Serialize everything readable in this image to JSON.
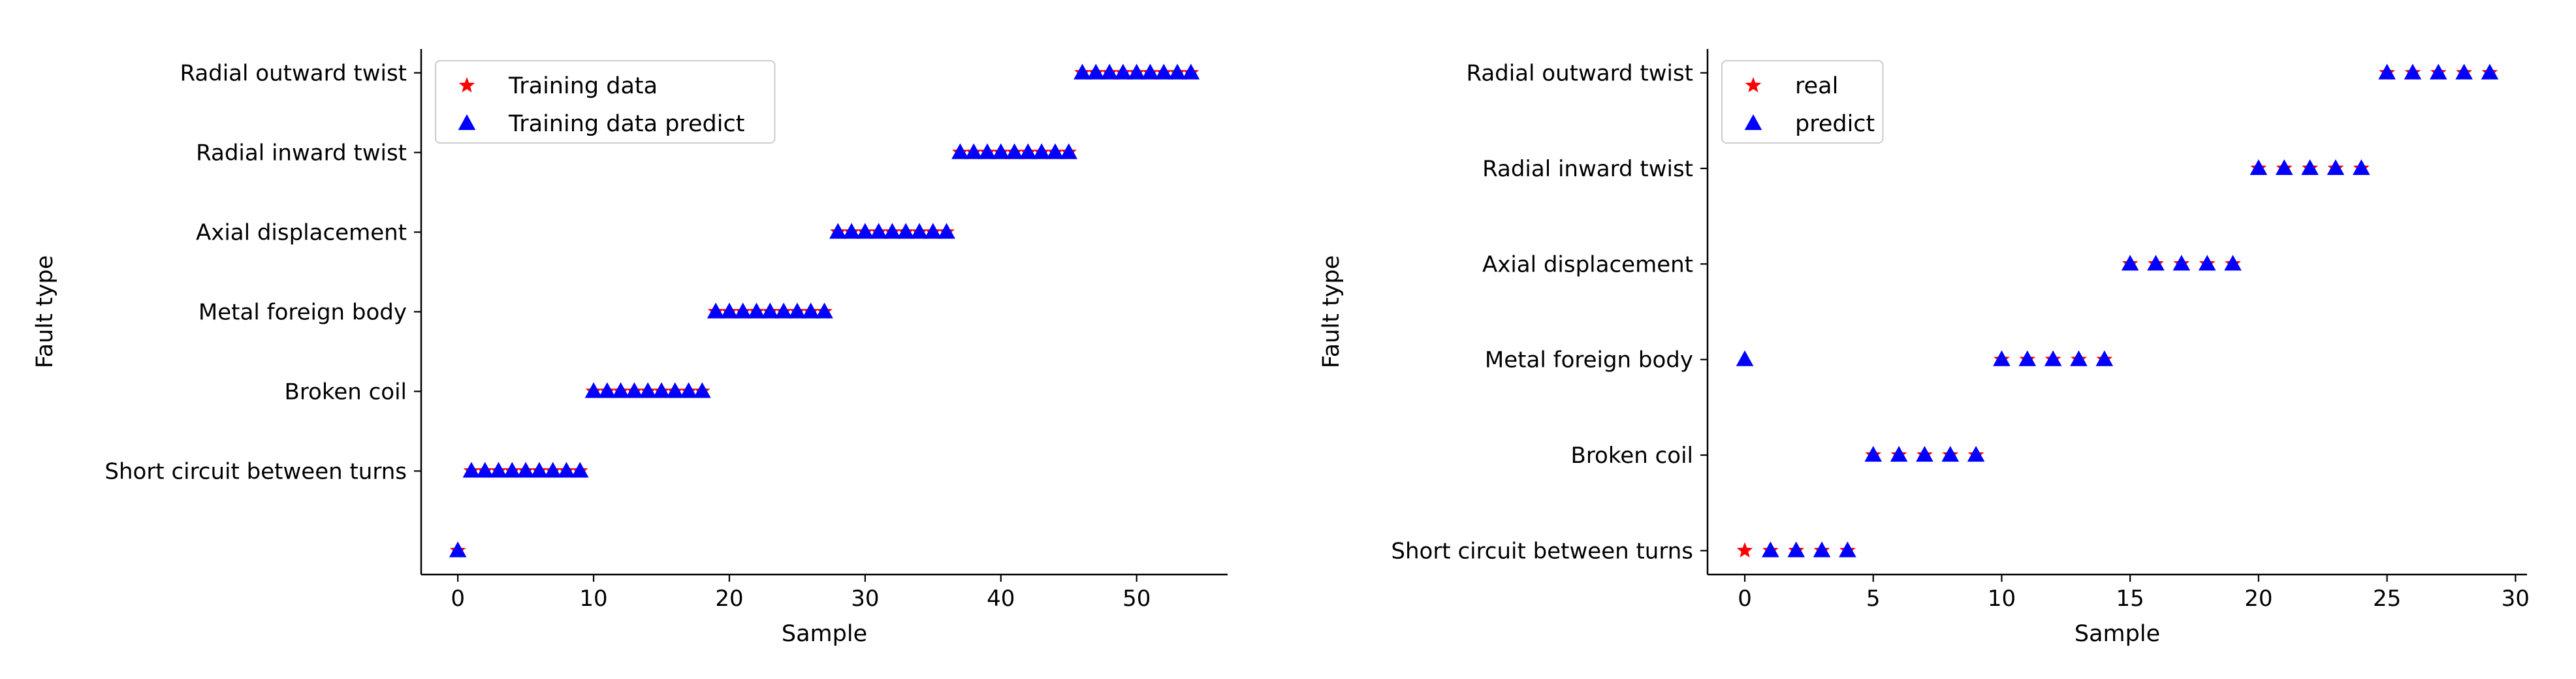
{
  "chart_data": [
    {
      "type": "scatter",
      "xlabel": "Sample",
      "ylabel": "Fault type",
      "xlim": [
        -2.7,
        56.7
      ],
      "ylim": [
        -0.3,
        6.3
      ],
      "xticks": [
        0,
        10,
        20,
        30,
        40,
        50
      ],
      "yticks": [
        1,
        2,
        3,
        4,
        5,
        6
      ],
      "ytick_labels": [
        "Short circuit between turns",
        "Broken coil",
        "Metal foreign body",
        "Axial displacement",
        "Radial inward twist",
        "Radial outward twist"
      ],
      "legend_position": "top-left",
      "series": [
        {
          "name": "Training data",
          "marker": "star",
          "color": "#ff0000",
          "x": [
            0,
            1,
            2,
            3,
            4,
            5,
            6,
            7,
            8,
            9,
            10,
            11,
            12,
            13,
            14,
            15,
            16,
            17,
            18,
            19,
            20,
            21,
            22,
            23,
            24,
            25,
            26,
            27,
            28,
            29,
            30,
            31,
            32,
            33,
            34,
            35,
            36,
            37,
            38,
            39,
            40,
            41,
            42,
            43,
            44,
            45,
            46,
            47,
            48,
            49,
            50,
            51,
            52,
            53,
            54
          ],
          "y": [
            0,
            1,
            1,
            1,
            1,
            1,
            1,
            1,
            1,
            1,
            2,
            2,
            2,
            2,
            2,
            2,
            2,
            2,
            2,
            3,
            3,
            3,
            3,
            3,
            3,
            3,
            3,
            3,
            4,
            4,
            4,
            4,
            4,
            4,
            4,
            4,
            4,
            5,
            5,
            5,
            5,
            5,
            5,
            5,
            5,
            5,
            6,
            6,
            6,
            6,
            6,
            6,
            6,
            6,
            6
          ]
        },
        {
          "name": "Training data predict",
          "marker": "triangle",
          "color": "#0000ff",
          "x": [
            0,
            1,
            2,
            3,
            4,
            5,
            6,
            7,
            8,
            9,
            10,
            11,
            12,
            13,
            14,
            15,
            16,
            17,
            18,
            19,
            20,
            21,
            22,
            23,
            24,
            25,
            26,
            27,
            28,
            29,
            30,
            31,
            32,
            33,
            34,
            35,
            36,
            37,
            38,
            39,
            40,
            41,
            42,
            43,
            44,
            45,
            46,
            47,
            48,
            49,
            50,
            51,
            52,
            53,
            54
          ],
          "y": [
            0,
            1,
            1,
            1,
            1,
            1,
            1,
            1,
            1,
            1,
            2,
            2,
            2,
            2,
            2,
            2,
            2,
            2,
            2,
            3,
            3,
            3,
            3,
            3,
            3,
            3,
            3,
            3,
            4,
            4,
            4,
            4,
            4,
            4,
            4,
            4,
            4,
            5,
            5,
            5,
            5,
            5,
            5,
            5,
            5,
            5,
            6,
            6,
            6,
            6,
            6,
            6,
            6,
            6,
            6
          ]
        }
      ]
    },
    {
      "type": "scatter",
      "xlabel": "Sample",
      "ylabel": "Fault type",
      "xlim": [
        -1.45,
        30.45
      ],
      "ylim": [
        0.75,
        6.25
      ],
      "xticks": [
        0,
        5,
        10,
        15,
        20,
        25,
        30
      ],
      "yticks": [
        1,
        2,
        3,
        4,
        5,
        6
      ],
      "ytick_labels": [
        "Short circuit between turns",
        "Broken coil",
        "Metal foreign body",
        "Axial displacement",
        "Radial inward twist",
        "Radial outward twist"
      ],
      "legend_position": "top-left",
      "series": [
        {
          "name": "real",
          "marker": "star",
          "color": "#ff0000",
          "x": [
            0,
            1,
            2,
            3,
            4,
            5,
            6,
            7,
            8,
            9,
            10,
            11,
            12,
            13,
            14,
            15,
            16,
            17,
            18,
            19,
            20,
            21,
            22,
            23,
            24,
            25,
            26,
            27,
            28,
            29
          ],
          "y": [
            1,
            1,
            1,
            1,
            1,
            2,
            2,
            2,
            2,
            2,
            3,
            3,
            3,
            3,
            3,
            4,
            4,
            4,
            4,
            4,
            5,
            5,
            5,
            5,
            5,
            6,
            6,
            6,
            6,
            6
          ]
        },
        {
          "name": "predict",
          "marker": "triangle",
          "color": "#0000ff",
          "x": [
            0,
            1,
            2,
            3,
            4,
            5,
            6,
            7,
            8,
            9,
            10,
            11,
            12,
            13,
            14,
            15,
            16,
            17,
            18,
            19,
            20,
            21,
            22,
            23,
            24,
            25,
            26,
            27,
            28,
            29
          ],
          "y": [
            3,
            1,
            1,
            1,
            1,
            2,
            2,
            2,
            2,
            2,
            3,
            3,
            3,
            3,
            3,
            4,
            4,
            4,
            4,
            4,
            5,
            5,
            5,
            5,
            5,
            6,
            6,
            6,
            6,
            6
          ]
        }
      ]
    }
  ]
}
